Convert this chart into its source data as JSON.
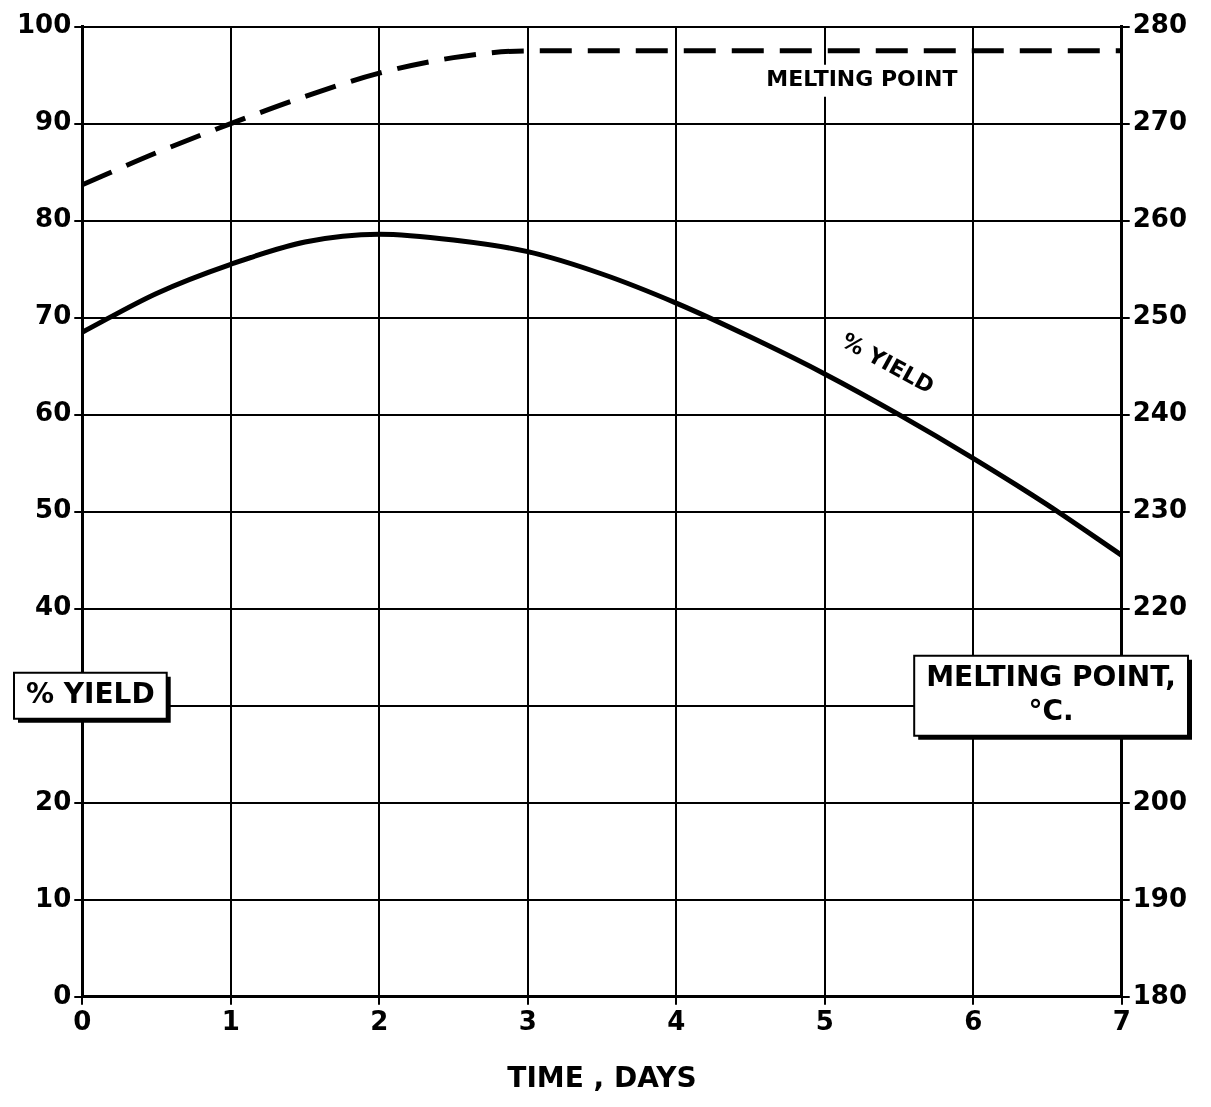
{
  "chart_data": {
    "type": "line",
    "xlabel": "TIME , DAYS",
    "ylabel": "% YIELD",
    "y2label": "MELTING POINT, °C.",
    "x": [
      0,
      0.5,
      1,
      1.5,
      2,
      2.5,
      3,
      3.5,
      4,
      4.5,
      5,
      5.5,
      6,
      6.5,
      7
    ],
    "series": [
      {
        "name": "% YIELD",
        "color": "#000000",
        "line_style": "solid",
        "values": [
          68.5,
          72.5,
          75.5,
          77.8,
          78.6,
          78,
          76.8,
          74.5,
          71.5,
          68,
          64.2,
          60,
          55.5,
          50.7,
          45.5
        ]
      },
      {
        "name": "MELTING POINT",
        "color": "#000000",
        "line_style": "dashed",
        "axis": "y2",
        "values": [
          263.7,
          267,
          270,
          272.8,
          275.2,
          276.8,
          277.5,
          277.5,
          277.5,
          277.5,
          277.5,
          277.5,
          277.5,
          277.5,
          277.5
        ]
      }
    ],
    "xlim": [
      0,
      7
    ],
    "xticks": [
      0,
      1,
      2,
      3,
      4,
      5,
      6,
      7
    ],
    "ylim": [
      0,
      100
    ],
    "yticks": [
      0,
      10,
      20,
      {
        "value": 30,
        "label": null
      },
      40,
      50,
      60,
      70,
      80,
      90,
      100
    ],
    "y2lim": [
      180,
      280
    ],
    "y2ticks": [
      180,
      190,
      200,
      {
        "value": 210,
        "label": null
      },
      220,
      230,
      240,
      250,
      260,
      270,
      280
    ],
    "grid": true,
    "legend": false,
    "marker": "none"
  }
}
